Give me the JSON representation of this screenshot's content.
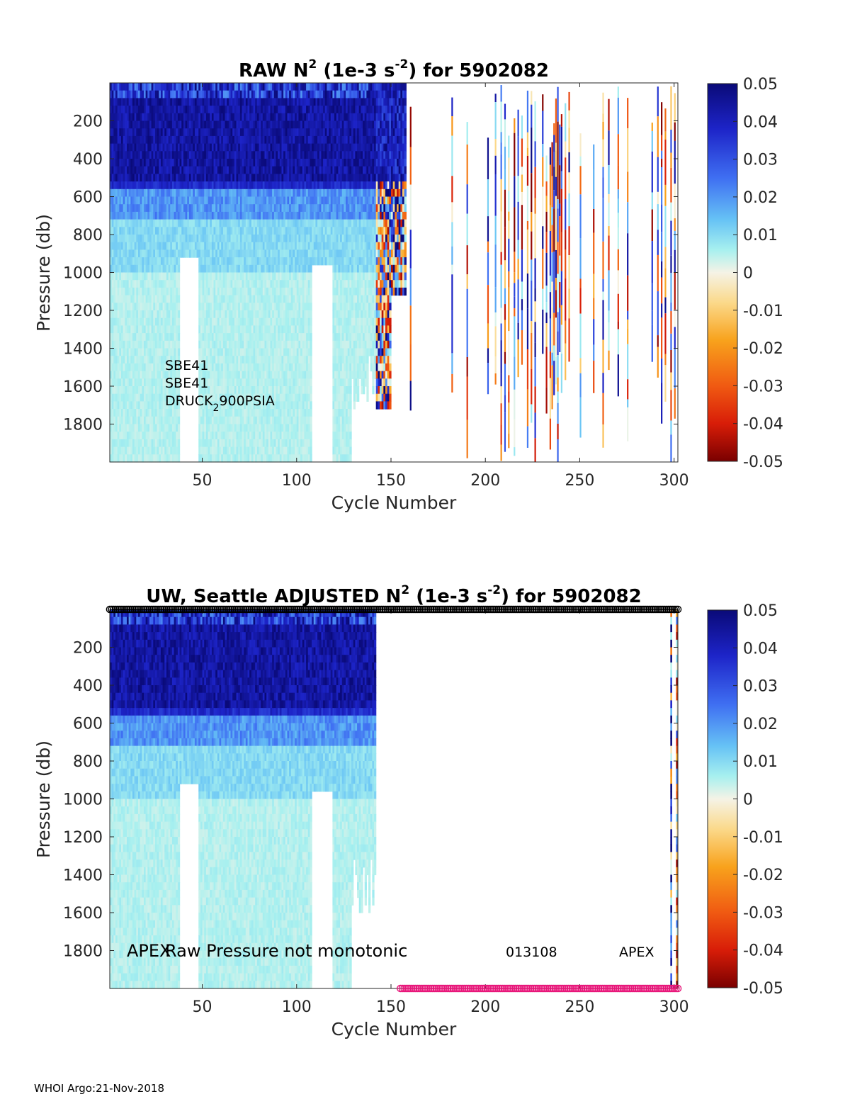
{
  "chart_data": [
    {
      "type": "heatmap",
      "title_parts": [
        "RAW N",
        "2",
        " (1e-3 s",
        "-2",
        ") for 5902082"
      ],
      "xlabel": "Cycle Number",
      "ylabel": "Pressure (db)",
      "xlim": [
        1,
        302
      ],
      "ylim": [
        2000,
        0
      ],
      "xticks": [
        50,
        100,
        150,
        200,
        250,
        300
      ],
      "yticks": [
        200,
        400,
        600,
        800,
        1000,
        1200,
        1400,
        1600,
        1800
      ],
      "colorbar": {
        "range": [
          -0.05,
          0.05
        ],
        "ticks": [
          "0.05",
          "0.04",
          "0.03",
          "0.02",
          "0.01",
          "0",
          "-0.01",
          "-0.02",
          "-0.03",
          "-0.04",
          "-0.05"
        ]
      },
      "sensor_labels": [
        "SBE41",
        "SBE41",
        "DRUCK",
        "2",
        "900PSIA"
      ],
      "data_summary": {
        "dense_cycles": [
          1,
          157
        ],
        "gap_cycles": [
          [
            38,
            47
          ],
          [
            108,
            118
          ]
        ],
        "sparse_cycles": [
          158,
          302
        ]
      }
    },
    {
      "type": "heatmap",
      "title_parts": [
        "UW, Seattle  ADJUSTED N",
        "2",
        " (1e-3 s",
        "-2",
        ") for 5902082"
      ],
      "xlabel": "Cycle Number",
      "ylabel": "Pressure (db)",
      "xlim": [
        1,
        302
      ],
      "ylim": [
        2000,
        0
      ],
      "xticks": [
        50,
        100,
        150,
        200,
        250,
        300
      ],
      "yticks": [
        200,
        400,
        600,
        800,
        1000,
        1200,
        1400,
        1600,
        1800
      ],
      "colorbar": {
        "range": [
          -0.05,
          0.05
        ],
        "ticks": [
          "0.05",
          "0.04",
          "0.03",
          "0.02",
          "0.01",
          "0",
          "-0.01",
          "-0.02",
          "-0.03",
          "-0.04",
          "-0.05"
        ]
      },
      "annotations": [
        "APEX",
        "Raw Pressure not monotonic",
        "013108",
        "APEX"
      ],
      "marker_rows": [
        {
          "color": "#000000",
          "cycles": [
            1,
            302
          ],
          "pressure": 0
        },
        {
          "color": "#e8177a",
          "cycles": [
            155,
            302
          ],
          "pressure": 2000
        }
      ],
      "data_summary": {
        "dense_cycles": [
          1,
          141
        ],
        "gap_cycles": [
          [
            38,
            47
          ],
          [
            108,
            118
          ]
        ],
        "extra_cycles": [
          298,
          300
        ]
      }
    }
  ],
  "footer": "WHOI Argo:21-Nov-2018"
}
